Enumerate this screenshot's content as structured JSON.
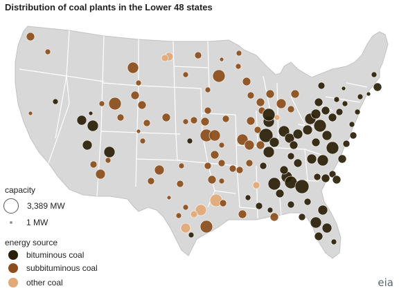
{
  "title": "Distribution of coal plants in the Lower 48 states",
  "legend": {
    "capacity_heading": "capacity",
    "capacity_large": "3,389 MW",
    "capacity_small": "1 MW",
    "source_heading": "energy source",
    "sources": [
      {
        "label": "bituminous coal",
        "color": "#2a1f08"
      },
      {
        "label": "subbituminous coal",
        "color": "#8b4d1b"
      },
      {
        "label": "other coal",
        "color": "#e2a977"
      }
    ]
  },
  "map_colors": {
    "land": "#d8d8d8",
    "border": "#ffffff"
  },
  "logo_text": "eia"
}
